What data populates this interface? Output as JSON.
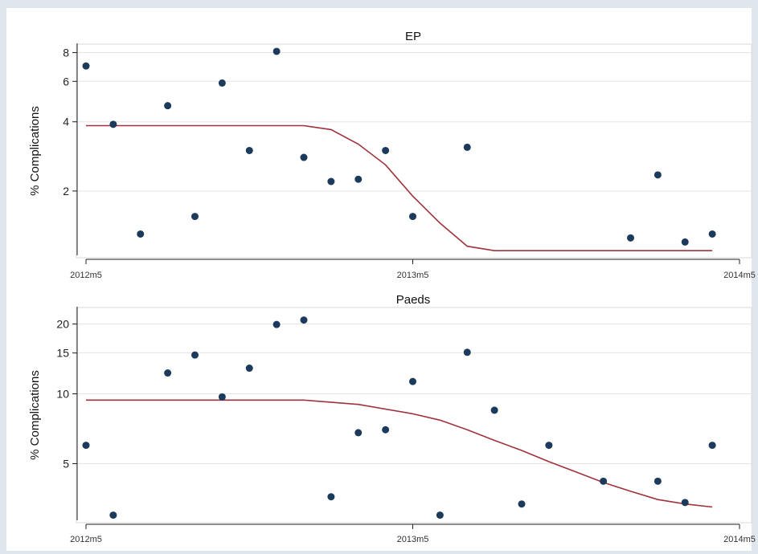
{
  "chart_data": [
    {
      "type": "scatter",
      "title": "EP",
      "ylabel": "% Complications",
      "yscale": "log",
      "ylim": [
        1.05,
        8.5
      ],
      "yticks": [
        2,
        4,
        6,
        8
      ],
      "ytick_labels": [
        "2",
        "4",
        "6",
        "8"
      ],
      "x_is_month_index": true,
      "xlim": [
        0,
        24
      ],
      "xticks": [
        0,
        12,
        24
      ],
      "xtick_labels": [
        "2012m5",
        "2013m5",
        "2014m5"
      ],
      "grid": true,
      "series": [
        {
          "kind": "points",
          "x": [
            0,
            1,
            2,
            3,
            4,
            5,
            6,
            7,
            8,
            9,
            10,
            11,
            12,
            14,
            20,
            21,
            22,
            23
          ],
          "y": [
            7.0,
            3.9,
            1.3,
            4.7,
            1.55,
            5.9,
            3.0,
            8.1,
            2.8,
            2.2,
            2.25,
            3.0,
            1.55,
            3.1,
            1.25,
            2.35,
            1.2,
            1.3
          ]
        },
        {
          "kind": "fit",
          "x": [
            0,
            8,
            9,
            10,
            11,
            12,
            13,
            14,
            15,
            23
          ],
          "y": [
            3.85,
            3.85,
            3.7,
            3.2,
            2.6,
            1.9,
            1.45,
            1.15,
            1.1,
            1.1
          ]
        }
      ]
    },
    {
      "type": "scatter",
      "title": "Paeds",
      "ylabel": "% Complications",
      "yscale": "log",
      "ylim": [
        2.85,
        23
      ],
      "yticks": [
        5,
        10,
        15,
        20
      ],
      "ytick_labels": [
        "5",
        "10",
        "15",
        "20"
      ],
      "x_is_month_index": true,
      "xlim": [
        0,
        24
      ],
      "xticks": [
        0,
        12,
        24
      ],
      "xtick_labels": [
        "2012m5",
        "2013m5",
        "2014m5"
      ],
      "grid": true,
      "series": [
        {
          "kind": "points",
          "x": [
            0,
            1,
            3,
            4,
            5,
            6,
            7,
            8,
            9,
            10,
            11,
            12,
            13,
            14,
            15,
            16,
            17,
            19,
            21,
            22,
            23
          ],
          "y": [
            6.0,
            3.0,
            12.3,
            14.7,
            9.7,
            12.9,
            19.9,
            20.8,
            3.6,
            6.8,
            7.0,
            11.3,
            3.0,
            15.1,
            8.5,
            3.35,
            6.0,
            4.2,
            4.2,
            3.4,
            6.0
          ]
        },
        {
          "kind": "fit",
          "x": [
            0,
            8,
            10,
            12,
            13,
            14,
            15,
            16,
            17,
            18,
            19,
            20,
            21,
            22,
            23
          ],
          "y": [
            9.4,
            9.4,
            9.0,
            8.2,
            7.7,
            7.0,
            6.3,
            5.7,
            5.1,
            4.6,
            4.15,
            3.8,
            3.5,
            3.35,
            3.25
          ]
        }
      ]
    }
  ]
}
